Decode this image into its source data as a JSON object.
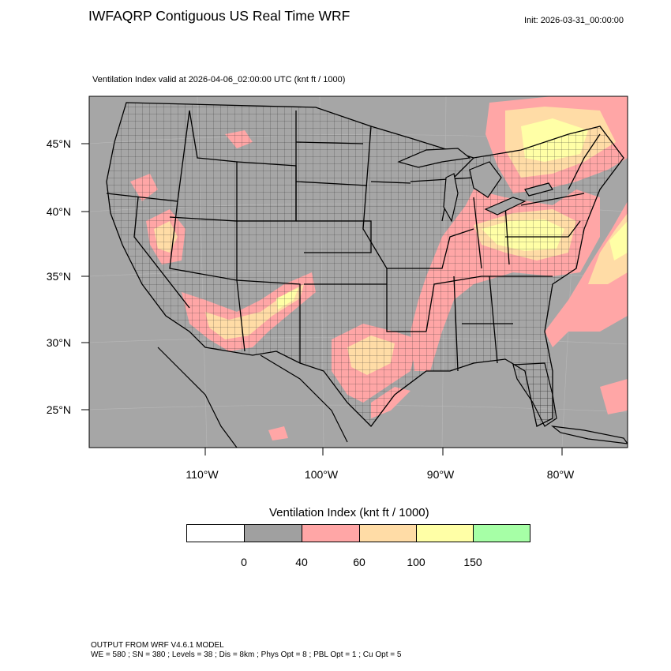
{
  "header": {
    "title": "IWFAQRP Contiguous US Real Time WRF",
    "init": "Init: 2026-03-31_00:00:00",
    "subtitle": "Ventilation Index valid at 2026-04-06_02:00:00 UTC   (knt ft / 1000)"
  },
  "map": {
    "lat_labels": [
      "45°N",
      "40°N",
      "35°N",
      "30°N",
      "25°N"
    ],
    "lon_labels": [
      "110°W",
      "100°W",
      "90°W",
      "80°W"
    ],
    "background_color": "#a6a6a6",
    "water_color": "#a6a6a6"
  },
  "legend": {
    "title": "Ventilation Index  (knt ft / 1000)",
    "bins": [
      {
        "color": "#ffffff"
      },
      {
        "color": "#a0a0a0"
      },
      {
        "color": "#ffa6a6"
      },
      {
        "color": "#ffdca6"
      },
      {
        "color": "#ffffa6"
      },
      {
        "color": "#a6ffa6"
      }
    ],
    "levels": [
      "0",
      "40",
      "60",
      "100",
      "150"
    ]
  },
  "footer": {
    "line1": "OUTPUT FROM WRF V4.6.1 MODEL",
    "line2": "WE = 580 ; SN = 380 ; Levels = 38 ; Dis = 8km ; Phys Opt = 8 ; PBL Opt = 1 ; Cu Opt = 5"
  }
}
